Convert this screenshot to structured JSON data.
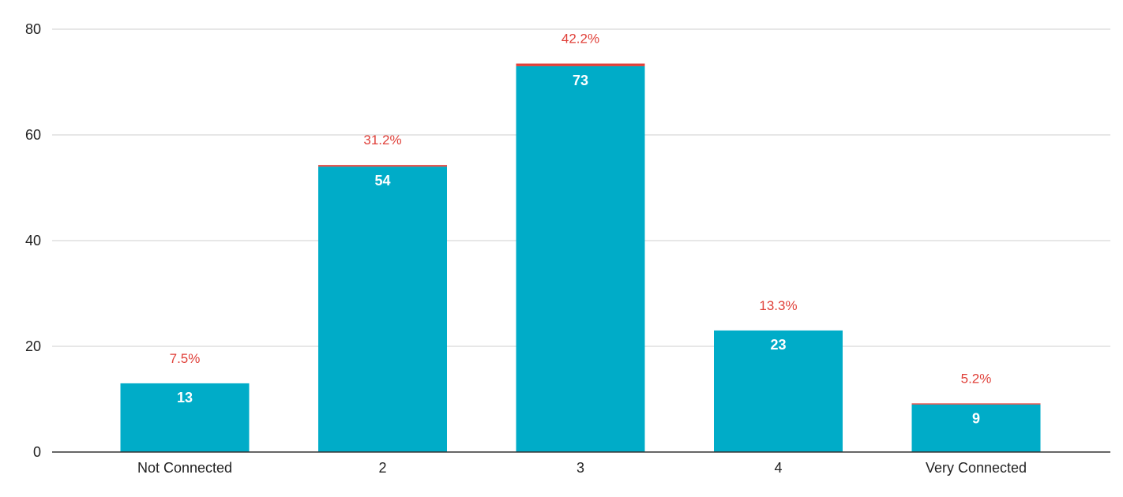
{
  "chart_data": {
    "type": "bar",
    "stacked": true,
    "categories": [
      "Not Connected",
      "2",
      "3",
      "4",
      "Very Connected"
    ],
    "series": [
      {
        "values": [
          13,
          54,
          73,
          23,
          9
        ],
        "color": "#00acc8"
      },
      {
        "values": [
          0,
          0.3,
          0.5,
          0,
          0.2
        ],
        "color": "#e0413a"
      }
    ],
    "value_labels": [
      "13",
      "54",
      "73",
      "23",
      "9"
    ],
    "percent_labels": [
      "7.5%",
      "31.2%",
      "42.2%",
      "13.3%",
      "5.2%"
    ],
    "percent_label_color": "#e0413a",
    "value_label_color": "#ffffff",
    "ylim": [
      0,
      80
    ],
    "yticks": [
      0,
      20,
      40,
      60,
      80
    ],
    "ytick_labels": [
      "0",
      "20",
      "40",
      "60",
      "80"
    ],
    "grid": true,
    "legend": "none",
    "title": "",
    "xlabel": "",
    "ylabel": ""
  }
}
